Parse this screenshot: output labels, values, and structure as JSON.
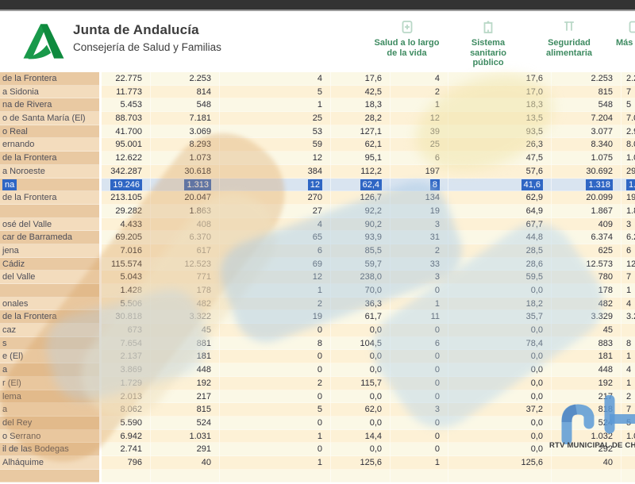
{
  "header": {
    "org_title": "Junta de Andalucía",
    "org_subtitle": "Consejería de Salud y Familias",
    "accent_green": "#007a42",
    "icon_green": "#b9d8c7",
    "nav": [
      {
        "label": "Salud a lo largo\nde la vida",
        "icon": "health-book-icon"
      },
      {
        "label": "Sistema\nsanitario\npúblico",
        "icon": "hospital-icon"
      },
      {
        "label": "Seguridad\nalimentaria",
        "icon": "test-tubes-icon"
      },
      {
        "label": "Más",
        "icon": "more-icon"
      }
    ]
  },
  "table": {
    "note": "municipality names are clipped at the left screen edge; last column clipped at right edge",
    "columns": [
      "municipio",
      "poblacion",
      "confirmados",
      "confirmados-14d",
      "tasa-14d",
      "confirmados-7d",
      "tasa-7d",
      "curados",
      "extra"
    ],
    "selection_color": "#2f66c4",
    "highlight_row_bg": "#d9e4f0",
    "rows": [
      {
        "n": "de la Frontera",
        "v": [
          "22.775",
          "2.253",
          "4",
          "17,6",
          "4",
          "17,6",
          "2.253"
        ],
        "x": "2.2"
      },
      {
        "n": "a Sidonia",
        "v": [
          "11.773",
          "814",
          "5",
          "42,5",
          "2",
          "17,0",
          "815"
        ],
        "x": "7"
      },
      {
        "n": "na de Rivera",
        "v": [
          "5.453",
          "548",
          "1",
          "18,3",
          "1",
          "18,3",
          "548"
        ],
        "x": "5"
      },
      {
        "n": "o de Santa María (El)",
        "v": [
          "88.703",
          "7.181",
          "25",
          "28,2",
          "12",
          "13,5",
          "7.204"
        ],
        "x": "7.0"
      },
      {
        "n": "o Real",
        "v": [
          "41.700",
          "3.069",
          "53",
          "127,1",
          "39",
          "93,5",
          "3.077"
        ],
        "x": "2.9"
      },
      {
        "n": "ernando",
        "v": [
          "95.001",
          "8.293",
          "59",
          "62,1",
          "25",
          "26,3",
          "8.340"
        ],
        "x": "8.0"
      },
      {
        "n": "de la Frontera",
        "v": [
          "12.622",
          "1.073",
          "12",
          "95,1",
          "6",
          "47,5",
          "1.075"
        ],
        "x": "1.0"
      },
      {
        "n": "a Noroeste",
        "v": [
          "342.287",
          "30.618",
          "384",
          "112,2",
          "197",
          "57,6",
          "30.692"
        ],
        "x": "29.7"
      },
      {
        "n": "na",
        "v": [
          "19.246",
          "1.313",
          "12",
          "62,4",
          "8",
          "41,6",
          "1.318"
        ],
        "x": "1.2",
        "hl": true
      },
      {
        "n": "de la Frontera",
        "v": [
          "213.105",
          "20.047",
          "270",
          "126,7",
          "134",
          "62,9",
          "20.099"
        ],
        "x": "19.4"
      },
      {
        "n": "",
        "v": [
          "29.282",
          "1.863",
          "27",
          "92,2",
          "19",
          "64,9",
          "1.867"
        ],
        "x": "1.8"
      },
      {
        "n": "osé del Valle",
        "v": [
          "4.433",
          "408",
          "4",
          "90,2",
          "3",
          "67,7",
          "409"
        ],
        "x": "3"
      },
      {
        "n": "car de Barrameda",
        "v": [
          "69.205",
          "6.370",
          "65",
          "93,9",
          "31",
          "44,8",
          "6.374"
        ],
        "x": "6.2"
      },
      {
        "n": "jena",
        "v": [
          "7.016",
          "617",
          "6",
          "85,5",
          "2",
          "28,5",
          "625"
        ],
        "x": "6"
      },
      {
        "n": "Cádiz",
        "v": [
          "115.574",
          "12.523",
          "69",
          "59,7",
          "33",
          "28,6",
          "12.573"
        ],
        "x": "12.2"
      },
      {
        "n": "del Valle",
        "v": [
          "5.043",
          "771",
          "12",
          "238,0",
          "3",
          "59,5",
          "780"
        ],
        "x": "7"
      },
      {
        "n": "",
        "v": [
          "1.428",
          "178",
          "1",
          "70,0",
          "0",
          "0,0",
          "178"
        ],
        "x": "1"
      },
      {
        "n": "onales",
        "v": [
          "5.506",
          "482",
          "2",
          "36,3",
          "1",
          "18,2",
          "482"
        ],
        "x": "4"
      },
      {
        "n": "de la Frontera",
        "v": [
          "30.818",
          "3.322",
          "19",
          "61,7",
          "11",
          "35,7",
          "3.329"
        ],
        "x": "3.2"
      },
      {
        "n": "caz",
        "v": [
          "673",
          "45",
          "0",
          "0,0",
          "0",
          "0,0",
          "45"
        ],
        "x": ""
      },
      {
        "n": "s",
        "v": [
          "7.654",
          "881",
          "8",
          "104,5",
          "6",
          "78,4",
          "883"
        ],
        "x": "8"
      },
      {
        "n": "e (El)",
        "v": [
          "2.137",
          "181",
          "0",
          "0,0",
          "0",
          "0,0",
          "181"
        ],
        "x": "1"
      },
      {
        "n": "a",
        "v": [
          "3.869",
          "448",
          "0",
          "0,0",
          "0",
          "0,0",
          "448"
        ],
        "x": "4"
      },
      {
        "n": "r (El)",
        "v": [
          "1.729",
          "192",
          "2",
          "115,7",
          "0",
          "0,0",
          "192"
        ],
        "x": "1"
      },
      {
        "n": "lema",
        "v": [
          "2.013",
          "217",
          "0",
          "0,0",
          "0",
          "0,0",
          "217"
        ],
        "x": "2"
      },
      {
        "n": "a",
        "v": [
          "8.062",
          "815",
          "5",
          "62,0",
          "3",
          "37,2",
          "818"
        ],
        "x": "7"
      },
      {
        "n": "del Rey",
        "v": [
          "5.590",
          "524",
          "0",
          "0,0",
          "0",
          "0,0",
          "524"
        ],
        "x": "5"
      },
      {
        "n": "o Serrano",
        "v": [
          "6.942",
          "1.031",
          "1",
          "14,4",
          "0",
          "0,0",
          "1.032"
        ],
        "x": "1.0"
      },
      {
        "n": "il de las Bodegas",
        "v": [
          "2.741",
          "291",
          "0",
          "0,0",
          "0",
          "0,0",
          "292"
        ],
        "x": ""
      },
      {
        "n": "Alháquime",
        "v": [
          "796",
          "40",
          "1",
          "125,6",
          "1",
          "125,6",
          "40"
        ],
        "x": ""
      },
      {
        "n": "",
        "v": [
          "",
          "",
          "",
          "",
          "",
          "",
          ""
        ],
        "x": ""
      }
    ]
  },
  "watermark": {
    "caption": "RTV MUNICIPAL DE CH",
    "logo_color": "#5b9ad6"
  }
}
